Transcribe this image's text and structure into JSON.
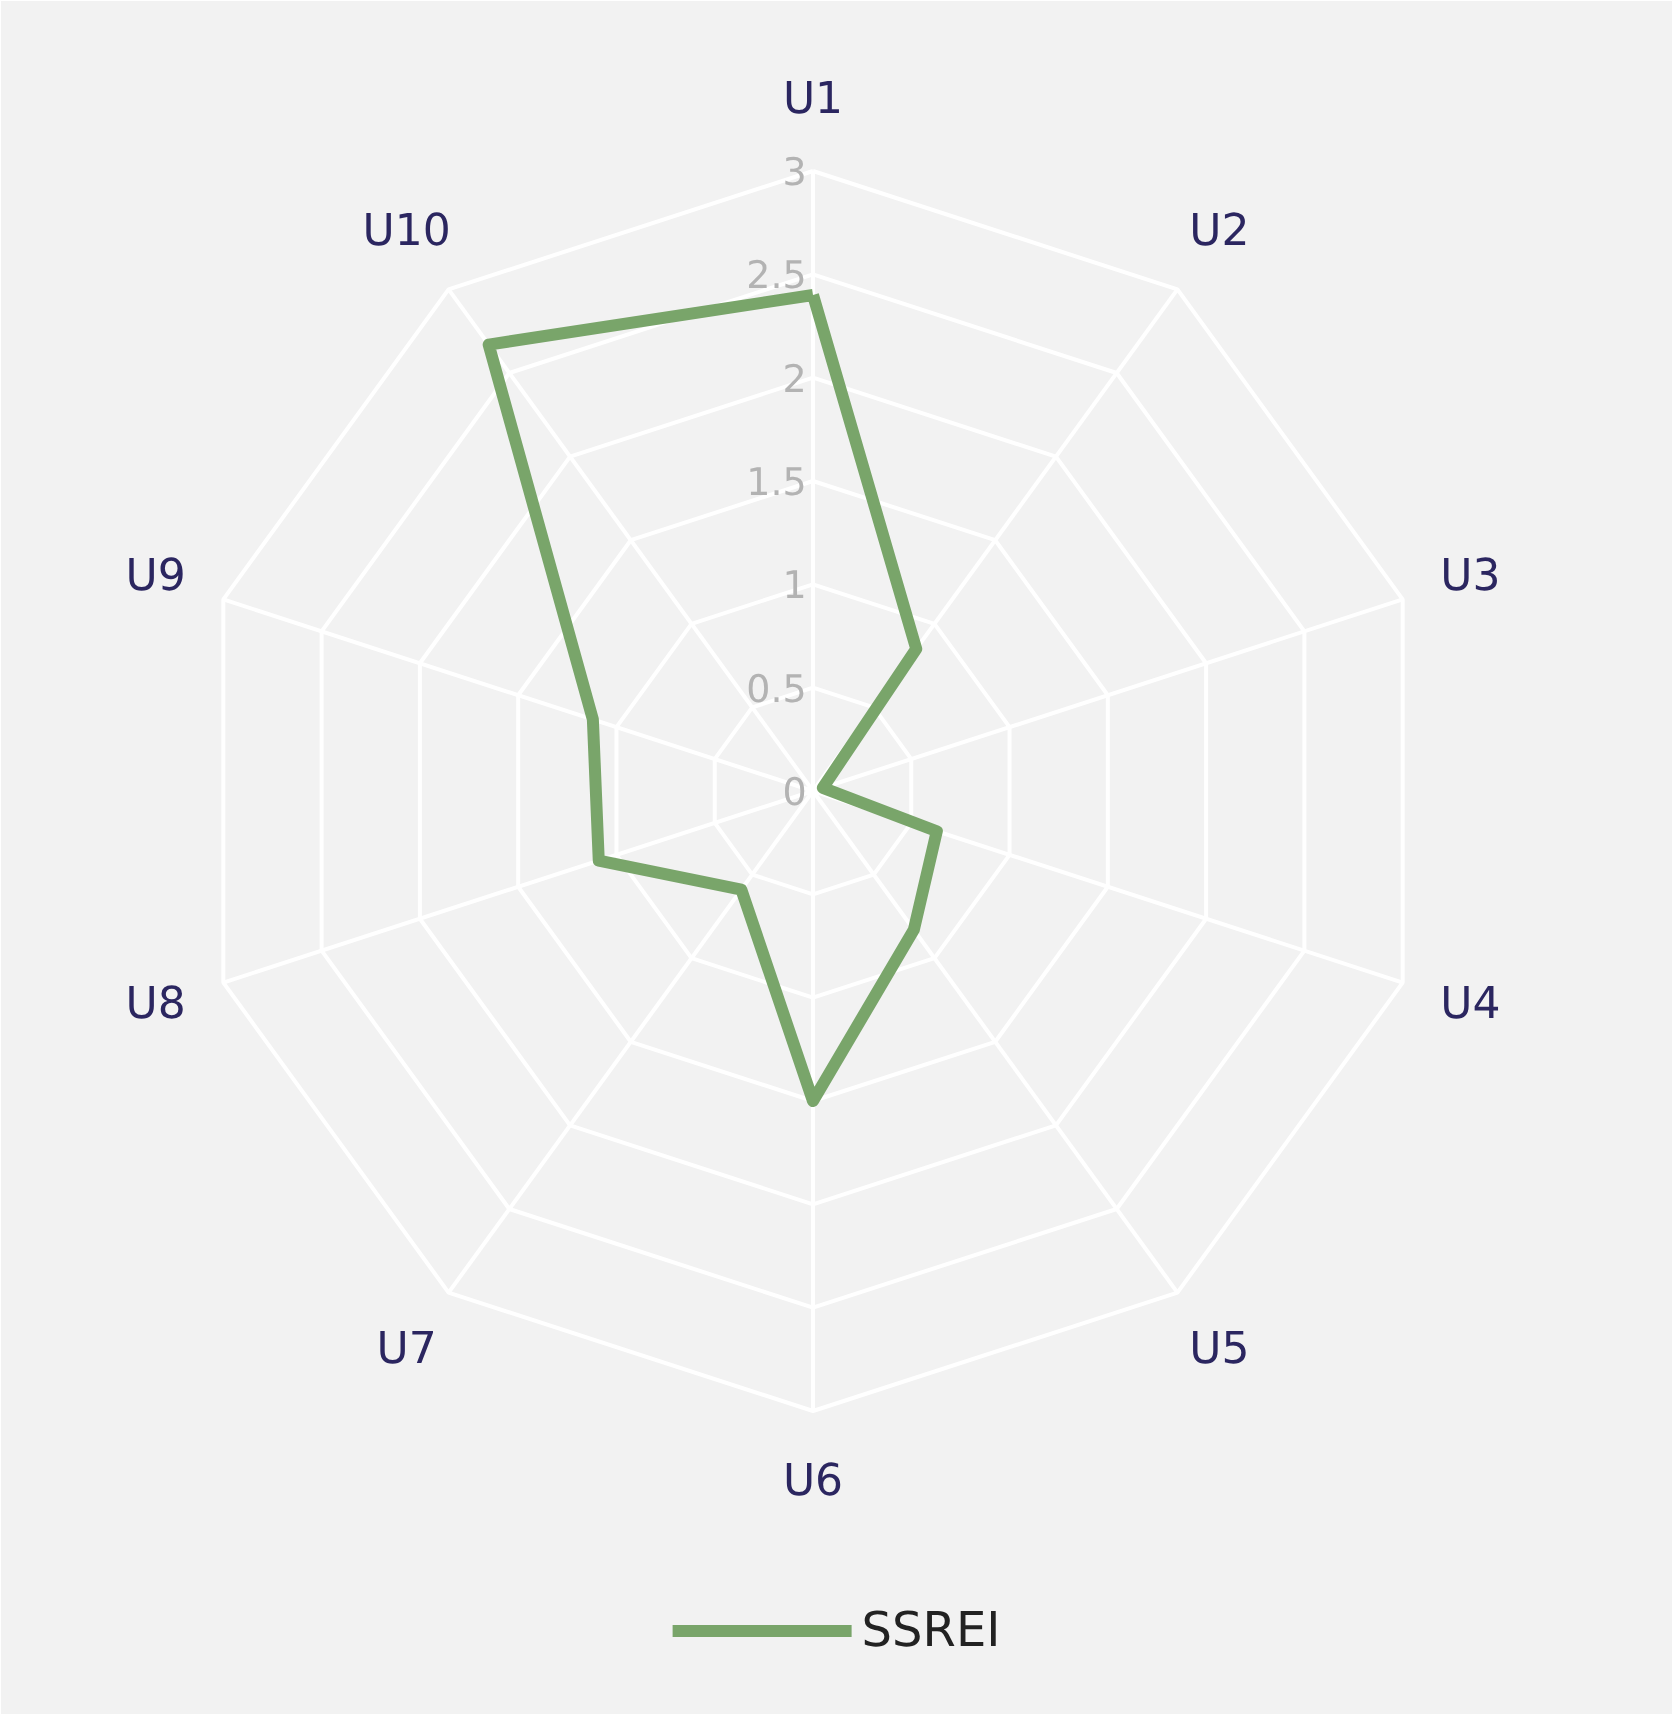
{
  "chart_data": {
    "type": "radar",
    "categories": [
      "U1",
      "U2",
      "U3",
      "U4",
      "U5",
      "U6",
      "U7",
      "U8",
      "U9",
      "U10"
    ],
    "series": [
      {
        "name": "SSREI",
        "color": "#79a56a",
        "values": [
          2.4,
          0.85,
          0.05,
          0.63,
          0.83,
          1.5,
          0.59,
          1.09,
          1.12,
          2.67
        ]
      }
    ],
    "ylim": [
      0,
      3
    ],
    "yticks": [
      0,
      0.5,
      1,
      1.5,
      2,
      2.5,
      3
    ],
    "grid": true,
    "legend": "bottom",
    "line_style": "solid",
    "marker": "none"
  }
}
